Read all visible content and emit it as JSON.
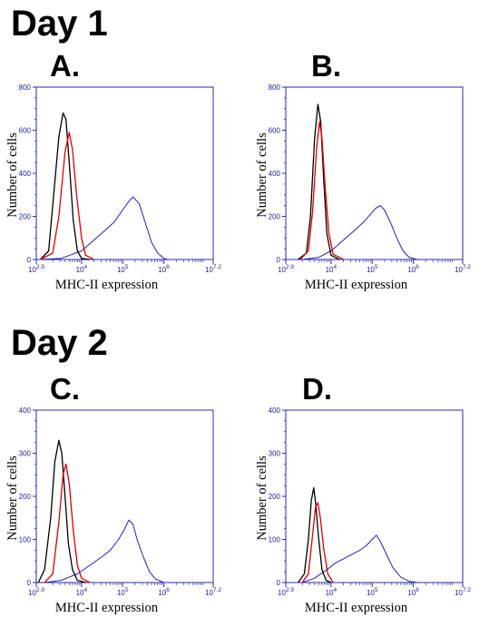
{
  "headings": {
    "day1": "Day 1",
    "day2": "Day 2"
  },
  "colors": {
    "axis": "#2828b4",
    "black_series": "#000000",
    "red_series": "#e00000",
    "blue_series": "#2020c0"
  },
  "chart_data": [
    {
      "type": "line",
      "panel_label": "A.",
      "ylabel": "Number of cells",
      "xlabel": "MHC-II expression",
      "xscale": "log",
      "xlim": [
        2.9,
        7.2
      ],
      "ylim": [
        0,
        800
      ],
      "yticks": [
        "0",
        "200",
        "400",
        "600",
        "800"
      ],
      "xticks": [
        {
          "exp": "2.9",
          "pos": 2.9
        },
        {
          "exp": "4",
          "pos": 4
        },
        {
          "exp": "5",
          "pos": 5
        },
        {
          "exp": "6",
          "pos": 6
        },
        {
          "exp": "7.2",
          "pos": 7.2
        }
      ],
      "series": [
        {
          "color": "black",
          "x": [
            3.0,
            3.2,
            3.3,
            3.45,
            3.55,
            3.62,
            3.7,
            3.8,
            3.9,
            4.0,
            4.2
          ],
          "y": [
            0,
            40,
            250,
            570,
            680,
            650,
            450,
            180,
            40,
            5,
            0
          ]
        },
        {
          "color": "red",
          "x": [
            3.0,
            3.3,
            3.45,
            3.6,
            3.7,
            3.78,
            3.88,
            4.0,
            4.1,
            4.3
          ],
          "y": [
            0,
            30,
            200,
            500,
            590,
            510,
            300,
            100,
            20,
            0
          ]
        },
        {
          "color": "blue",
          "x": [
            3.0,
            3.5,
            4.0,
            4.3,
            4.6,
            4.8,
            5.0,
            5.15,
            5.25,
            5.4,
            5.55,
            5.7,
            5.85,
            6.0,
            6.1
          ],
          "y": [
            0,
            5,
            40,
            90,
            140,
            175,
            230,
            270,
            290,
            260,
            170,
            80,
            30,
            5,
            0
          ]
        }
      ]
    },
    {
      "type": "line",
      "panel_label": "B.",
      "ylabel": "Number of cells",
      "xlabel": "MHC-II expression",
      "xscale": "log",
      "xlim": [
        2.9,
        7.2
      ],
      "ylim": [
        0,
        800
      ],
      "yticks": [
        "0",
        "200",
        "400",
        "600",
        "800"
      ],
      "xticks": [
        {
          "exp": "2.9",
          "pos": 2.9
        },
        {
          "exp": "4",
          "pos": 4
        },
        {
          "exp": "5",
          "pos": 5
        },
        {
          "exp": "6",
          "pos": 6
        },
        {
          "exp": "7.2",
          "pos": 7.2
        }
      ],
      "series": [
        {
          "color": "black",
          "x": [
            3.2,
            3.4,
            3.5,
            3.6,
            3.68,
            3.75,
            3.82,
            3.9,
            4.0,
            4.2
          ],
          "y": [
            0,
            30,
            200,
            560,
            720,
            640,
            380,
            120,
            20,
            0
          ]
        },
        {
          "color": "red",
          "x": [
            3.25,
            3.45,
            3.55,
            3.65,
            3.72,
            3.78,
            3.86,
            3.95,
            4.05,
            4.3
          ],
          "y": [
            0,
            40,
            220,
            520,
            640,
            560,
            330,
            120,
            25,
            0
          ]
        },
        {
          "color": "blue",
          "x": [
            3.3,
            3.7,
            4.0,
            4.3,
            4.6,
            4.8,
            5.0,
            5.1,
            5.2,
            5.3,
            5.45,
            5.6,
            5.75,
            5.9,
            6.1
          ],
          "y": [
            0,
            10,
            40,
            90,
            140,
            175,
            220,
            240,
            250,
            230,
            170,
            100,
            40,
            10,
            0
          ]
        }
      ]
    },
    {
      "type": "line",
      "panel_label": "C.",
      "ylabel": "Number of cells",
      "xlabel": "MHC-II expression",
      "xscale": "log",
      "xlim": [
        2.9,
        7.2
      ],
      "ylim": [
        0,
        400
      ],
      "yticks": [
        "0",
        "100",
        "200",
        "300",
        "400"
      ],
      "xticks": [
        {
          "exp": "2.9",
          "pos": 2.9
        },
        {
          "exp": "4",
          "pos": 4
        },
        {
          "exp": "5",
          "pos": 5
        },
        {
          "exp": "6",
          "pos": 6
        },
        {
          "exp": "7.2",
          "pos": 7.2
        }
      ],
      "series": [
        {
          "color": "black",
          "x": [
            2.95,
            3.1,
            3.25,
            3.35,
            3.45,
            3.52,
            3.6,
            3.68,
            3.78,
            3.9,
            4.1
          ],
          "y": [
            0,
            30,
            150,
            280,
            330,
            300,
            200,
            90,
            30,
            5,
            0
          ]
        },
        {
          "color": "red",
          "x": [
            3.1,
            3.3,
            3.45,
            3.55,
            3.62,
            3.7,
            3.8,
            3.9,
            4.0,
            4.2
          ],
          "y": [
            0,
            20,
            140,
            250,
            275,
            230,
            120,
            40,
            10,
            0
          ]
        },
        {
          "color": "blue",
          "x": [
            3.1,
            3.5,
            3.9,
            4.2,
            4.5,
            4.7,
            4.9,
            5.05,
            5.15,
            5.25,
            5.35,
            5.5,
            5.65,
            5.8,
            6.0
          ],
          "y": [
            0,
            5,
            20,
            40,
            60,
            75,
            100,
            125,
            145,
            135,
            100,
            60,
            25,
            8,
            0
          ]
        }
      ]
    },
    {
      "type": "line",
      "panel_label": "D.",
      "ylabel": "Number of cells",
      "xlabel": "MHC-II expression",
      "xscale": "log",
      "xlim": [
        2.9,
        7.2
      ],
      "ylim": [
        0,
        400
      ],
      "yticks": [
        "0",
        "100",
        "200",
        "300",
        "400"
      ],
      "xticks": [
        {
          "exp": "2.9",
          "pos": 2.9
        },
        {
          "exp": "4",
          "pos": 4
        },
        {
          "exp": "5",
          "pos": 5
        },
        {
          "exp": "6",
          "pos": 6
        },
        {
          "exp": "7.2",
          "pos": 7.2
        }
      ],
      "series": [
        {
          "color": "black",
          "x": [
            3.2,
            3.35,
            3.45,
            3.52,
            3.58,
            3.63,
            3.7,
            3.78,
            3.88,
            4.0
          ],
          "y": [
            0,
            20,
            100,
            190,
            220,
            180,
            100,
            30,
            5,
            0
          ]
        },
        {
          "color": "red",
          "x": [
            3.3,
            3.45,
            3.55,
            3.62,
            3.68,
            3.74,
            3.82,
            3.92,
            4.05
          ],
          "y": [
            0,
            20,
            110,
            175,
            185,
            150,
            80,
            20,
            0
          ]
        },
        {
          "color": "blue",
          "x": [
            3.3,
            3.6,
            3.9,
            4.1,
            4.3,
            4.5,
            4.7,
            4.85,
            5.0,
            5.1,
            5.2,
            5.35,
            5.5,
            5.7,
            5.9,
            6.1
          ],
          "y": [
            0,
            10,
            30,
            45,
            55,
            65,
            75,
            85,
            100,
            110,
            95,
            65,
            35,
            12,
            3,
            0
          ]
        }
      ]
    }
  ]
}
